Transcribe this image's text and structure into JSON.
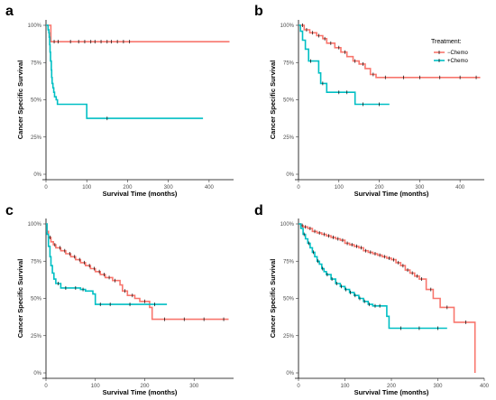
{
  "colors": {
    "minus_chemo": "#F8766D",
    "plus_chemo": "#00BFC4"
  },
  "legend": {
    "title": "Treatment:",
    "items": [
      "−Chemo",
      "+Chemo"
    ],
    "placement": "top-right of panel b"
  },
  "chart_data": [
    {
      "panel": "a",
      "type": "line",
      "xlabel": "Survival Time (months)",
      "ylabel": "Cancer Specific Survival",
      "xlim": [
        0,
        460
      ],
      "ylim": [
        0,
        1
      ],
      "xticks": [
        0,
        100,
        200,
        300,
        400
      ],
      "yticks": [
        "0%",
        "25%",
        "50%",
        "75%",
        "100%"
      ],
      "grid": false,
      "series": [
        {
          "name": "−Chemo",
          "color": "#F8766D",
          "steps": [
            [
              0,
              1.0
            ],
            [
              12,
              1.0
            ],
            [
              12,
              0.89
            ],
            [
              450,
              0.89
            ]
          ],
          "censor": [
            20,
            30,
            60,
            80,
            95,
            110,
            120,
            135,
            150,
            160,
            175,
            190,
            205
          ]
        },
        {
          "name": "+Chemo",
          "color": "#00BFC4",
          "steps": [
            [
              0,
              1.0
            ],
            [
              5,
              1.0
            ],
            [
              5,
              0.97
            ],
            [
              7,
              0.95
            ],
            [
              8,
              0.92
            ],
            [
              9,
              0.87
            ],
            [
              10,
              0.82
            ],
            [
              11,
              0.76
            ],
            [
              13,
              0.7
            ],
            [
              14,
              0.65
            ],
            [
              15,
              0.61
            ],
            [
              17,
              0.58
            ],
            [
              19,
              0.55
            ],
            [
              21,
              0.52
            ],
            [
              25,
              0.5
            ],
            [
              28,
              0.47
            ],
            [
              100,
              0.47
            ],
            [
              100,
              0.375
            ],
            [
              385,
              0.375
            ]
          ],
          "censor": [
            150
          ]
        }
      ]
    },
    {
      "panel": "b",
      "type": "line",
      "xlabel": "Survival Time (months)",
      "ylabel": "Cancer Specific Survival",
      "xlim": [
        0,
        460
      ],
      "ylim": [
        0,
        1
      ],
      "xticks": [
        0,
        100,
        200,
        300,
        400
      ],
      "yticks": [
        "0%",
        "25%",
        "50%",
        "75%",
        "100%"
      ],
      "grid": false,
      "series": [
        {
          "name": "−Chemo",
          "color": "#F8766D",
          "steps": [
            [
              0,
              1.0
            ],
            [
              14,
              1.0
            ],
            [
              14,
              0.97
            ],
            [
              28,
              0.97
            ],
            [
              28,
              0.95
            ],
            [
              45,
              0.95
            ],
            [
              45,
              0.93
            ],
            [
              60,
              0.93
            ],
            [
              60,
              0.91
            ],
            [
              70,
              0.91
            ],
            [
              70,
              0.88
            ],
            [
              90,
              0.88
            ],
            [
              90,
              0.85
            ],
            [
              105,
              0.85
            ],
            [
              105,
              0.82
            ],
            [
              120,
              0.82
            ],
            [
              120,
              0.79
            ],
            [
              135,
              0.79
            ],
            [
              135,
              0.76
            ],
            [
              150,
              0.76
            ],
            [
              150,
              0.74
            ],
            [
              165,
              0.74
            ],
            [
              165,
              0.71
            ],
            [
              178,
              0.71
            ],
            [
              178,
              0.67
            ],
            [
              192,
              0.67
            ],
            [
              192,
              0.65
            ],
            [
              450,
              0.65
            ]
          ],
          "censor": [
            10,
            20,
            35,
            50,
            65,
            80,
            100,
            115,
            140,
            160,
            185,
            215,
            260,
            300,
            350,
            400,
            440
          ]
        },
        {
          "name": "+Chemo",
          "color": "#00BFC4",
          "steps": [
            [
              0,
              1.0
            ],
            [
              5,
              1.0
            ],
            [
              5,
              0.96
            ],
            [
              10,
              0.96
            ],
            [
              10,
              0.9
            ],
            [
              17,
              0.9
            ],
            [
              17,
              0.84
            ],
            [
              25,
              0.84
            ],
            [
              25,
              0.76
            ],
            [
              50,
              0.76
            ],
            [
              50,
              0.68
            ],
            [
              55,
              0.68
            ],
            [
              55,
              0.61
            ],
            [
              70,
              0.61
            ],
            [
              70,
              0.55
            ],
            [
              140,
              0.55
            ],
            [
              140,
              0.47
            ],
            [
              225,
              0.47
            ]
          ],
          "censor": [
            30,
            60,
            100,
            120,
            160,
            200
          ]
        }
      ]
    },
    {
      "panel": "c",
      "type": "line",
      "xlabel": "Survival Time (months)",
      "ylabel": "Cancer Specific Survival",
      "xlim": [
        0,
        380
      ],
      "ylim": [
        0,
        1
      ],
      "xticks": [
        0,
        100,
        200,
        300
      ],
      "yticks": [
        "0%",
        "25%",
        "50%",
        "75%",
        "100%"
      ],
      "grid": false,
      "series": [
        {
          "name": "−Chemo",
          "color": "#F8766D",
          "steps": [
            [
              0,
              1.0
            ],
            [
              2,
              0.95
            ],
            [
              5,
              0.91
            ],
            [
              10,
              0.88
            ],
            [
              15,
              0.86
            ],
            [
              20,
              0.84
            ],
            [
              30,
              0.82
            ],
            [
              40,
              0.8
            ],
            [
              50,
              0.78
            ],
            [
              60,
              0.76
            ],
            [
              70,
              0.74
            ],
            [
              80,
              0.72
            ],
            [
              90,
              0.7
            ],
            [
              100,
              0.68
            ],
            [
              110,
              0.66
            ],
            [
              120,
              0.64
            ],
            [
              135,
              0.62
            ],
            [
              150,
              0.62
            ],
            [
              150,
              0.59
            ],
            [
              155,
              0.55
            ],
            [
              165,
              0.52
            ],
            [
              180,
              0.5
            ],
            [
              190,
              0.48
            ],
            [
              210,
              0.48
            ],
            [
              210,
              0.44
            ],
            [
              215,
              0.44
            ],
            [
              215,
              0.36
            ],
            [
              370,
              0.36
            ]
          ],
          "censor": [
            8,
            18,
            28,
            38,
            48,
            58,
            68,
            78,
            88,
            98,
            108,
            118,
            128,
            140,
            160,
            175,
            200,
            240,
            280,
            320,
            360
          ]
        },
        {
          "name": "+Chemo",
          "color": "#00BFC4",
          "steps": [
            [
              0,
              1.0
            ],
            [
              2,
              0.93
            ],
            [
              5,
              0.85
            ],
            [
              8,
              0.78
            ],
            [
              10,
              0.72
            ],
            [
              13,
              0.67
            ],
            [
              16,
              0.63
            ],
            [
              20,
              0.6
            ],
            [
              30,
              0.57
            ],
            [
              50,
              0.57
            ],
            [
              70,
              0.56
            ],
            [
              80,
              0.55
            ],
            [
              95,
              0.53
            ],
            [
              100,
              0.46
            ],
            [
              245,
              0.46
            ]
          ],
          "censor": [
            25,
            40,
            60,
            75,
            110,
            130,
            170,
            220
          ]
        }
      ]
    },
    {
      "panel": "d",
      "type": "line",
      "xlabel": "Survival Time (months)",
      "ylabel": "Cancer Specific Survival",
      "xlim": [
        0,
        400
      ],
      "ylim": [
        0,
        1
      ],
      "xticks": [
        0,
        100,
        200,
        300,
        400
      ],
      "yticks": [
        "0%",
        "25%",
        "50%",
        "75%",
        "100%"
      ],
      "grid": false,
      "series": [
        {
          "name": "−Chemo",
          "color": "#F8766D",
          "steps": [
            [
              0,
              1.0
            ],
            [
              5,
              0.99
            ],
            [
              10,
              0.98
            ],
            [
              20,
              0.97
            ],
            [
              30,
              0.95
            ],
            [
              40,
              0.94
            ],
            [
              50,
              0.93
            ],
            [
              60,
              0.92
            ],
            [
              70,
              0.91
            ],
            [
              80,
              0.9
            ],
            [
              90,
              0.89
            ],
            [
              100,
              0.87
            ],
            [
              110,
              0.86
            ],
            [
              120,
              0.85
            ],
            [
              130,
              0.84
            ],
            [
              140,
              0.82
            ],
            [
              150,
              0.81
            ],
            [
              160,
              0.8
            ],
            [
              170,
              0.79
            ],
            [
              180,
              0.78
            ],
            [
              190,
              0.77
            ],
            [
              200,
              0.76
            ],
            [
              210,
              0.74
            ],
            [
              220,
              0.72
            ],
            [
              230,
              0.69
            ],
            [
              240,
              0.67
            ],
            [
              250,
              0.65
            ],
            [
              260,
              0.63
            ],
            [
              270,
              0.63
            ],
            [
              275,
              0.56
            ],
            [
              290,
              0.5
            ],
            [
              300,
              0.5
            ],
            [
              305,
              0.44
            ],
            [
              325,
              0.44
            ],
            [
              335,
              0.34
            ],
            [
              380,
              0.34
            ],
            [
              380,
              0.0
            ]
          ],
          "censor": [
            8,
            15,
            25,
            35,
            45,
            55,
            65,
            75,
            85,
            95,
            105,
            115,
            125,
            135,
            145,
            155,
            165,
            175,
            185,
            195,
            205,
            215,
            225,
            235,
            245,
            255,
            265,
            285,
            320,
            360
          ]
        },
        {
          "name": "+Chemo",
          "color": "#00BFC4",
          "steps": [
            [
              0,
              1.0
            ],
            [
              5,
              0.97
            ],
            [
              10,
              0.93
            ],
            [
              15,
              0.9
            ],
            [
              20,
              0.87
            ],
            [
              25,
              0.84
            ],
            [
              30,
              0.81
            ],
            [
              35,
              0.78
            ],
            [
              40,
              0.75
            ],
            [
              45,
              0.73
            ],
            [
              50,
              0.7
            ],
            [
              55,
              0.68
            ],
            [
              60,
              0.66
            ],
            [
              70,
              0.63
            ],
            [
              80,
              0.6
            ],
            [
              90,
              0.58
            ],
            [
              100,
              0.56
            ],
            [
              110,
              0.54
            ],
            [
              120,
              0.52
            ],
            [
              130,
              0.5
            ],
            [
              140,
              0.48
            ],
            [
              150,
              0.46
            ],
            [
              160,
              0.45
            ],
            [
              180,
              0.45
            ],
            [
              190,
              0.38
            ],
            [
              195,
              0.3
            ],
            [
              320,
              0.3
            ]
          ],
          "censor": [
            12,
            22,
            32,
            42,
            52,
            62,
            72,
            82,
            92,
            102,
            112,
            122,
            132,
            142,
            152,
            165,
            175,
            220,
            260,
            300
          ]
        }
      ]
    }
  ]
}
